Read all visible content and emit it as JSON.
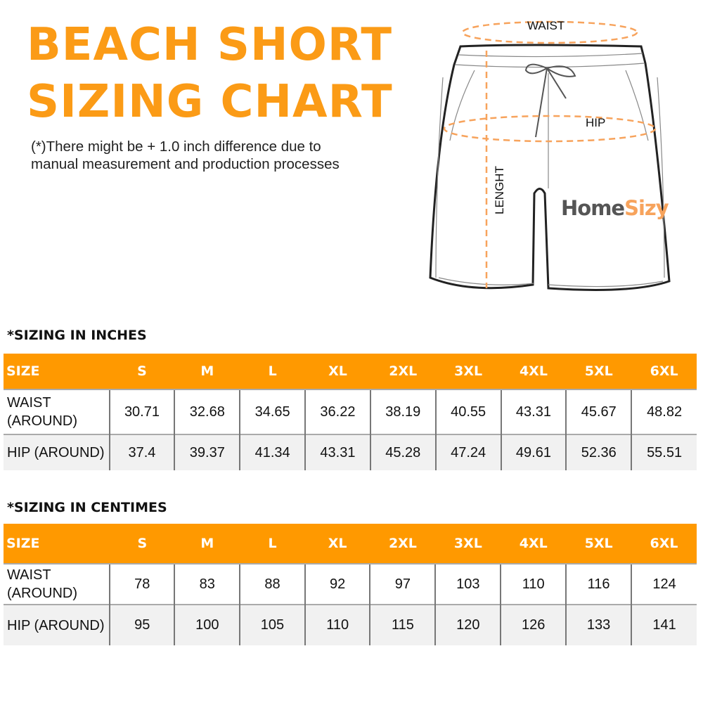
{
  "title": {
    "line1": "BEACH SHORT",
    "line2": "SIZING CHART"
  },
  "note": {
    "line1": "(*)There might be + 1.0 inch difference due to",
    "line2": "manual measurement and production processes"
  },
  "diagram": {
    "waist": "WAIST",
    "hip": "HIP",
    "length": "LENGHT",
    "logo": "HomeSizy",
    "accent": "#f7a35c"
  },
  "colors": {
    "header": "#ff9900",
    "title": "#fb9b16"
  },
  "tables": [
    {
      "caption": "*SIZING IN INCHES",
      "header": [
        "SIZE",
        "S",
        "M",
        "L",
        "XL",
        "2XL",
        "3XL",
        "4XL",
        "5XL",
        "6XL"
      ],
      "rows": [
        [
          "WAIST (AROUND)",
          "30.71",
          "32.68",
          "34.65",
          "36.22",
          "38.19",
          "40.55",
          "43.31",
          "45.67",
          "48.82"
        ],
        [
          "HIP (AROUND)",
          "37.4",
          "39.37",
          "41.34",
          "43.31",
          "45.28",
          "47.24",
          "49.61",
          "52.36",
          "55.51"
        ]
      ]
    },
    {
      "caption": "*SIZING IN CENTIMES",
      "header": [
        "SIZE",
        "S",
        "M",
        "L",
        "XL",
        "2XL",
        "3XL",
        "4XL",
        "5XL",
        "6XL"
      ],
      "rows": [
        [
          "WAIST (AROUND)",
          "78",
          "83",
          "88",
          "92",
          "97",
          "103",
          "110",
          "116",
          "124"
        ],
        [
          "HIP (AROUND)",
          "95",
          "100",
          "105",
          "110",
          "115",
          "120",
          "126",
          "133",
          "141"
        ]
      ]
    }
  ]
}
